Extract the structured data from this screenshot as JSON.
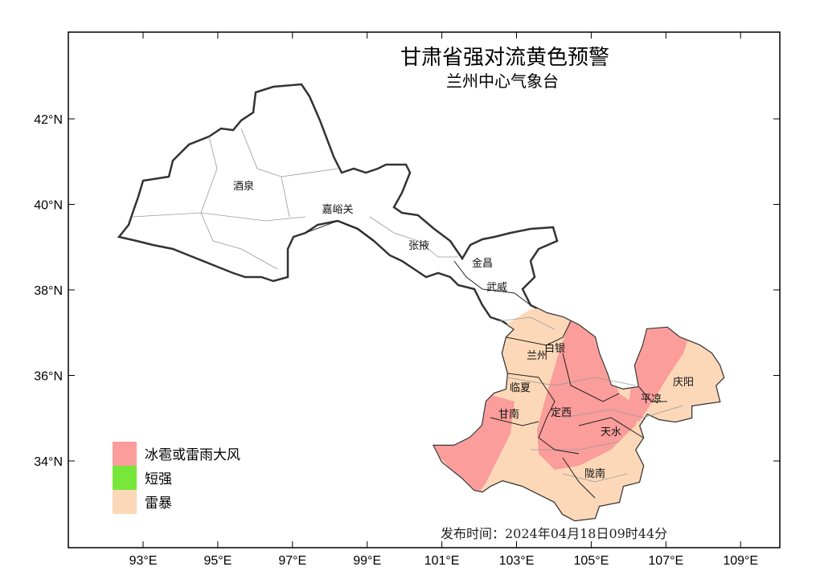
{
  "title": "甘肃省强对流黄色预警",
  "subtitle": "兰州中心气象台",
  "issue_time": "发布时间：2024年04月18日09时44分",
  "axes": {
    "x_ticks": [
      "93°E",
      "95°E",
      "97°E",
      "99°E",
      "101°E",
      "103°E",
      "105°E",
      "107°E",
      "109°E"
    ],
    "y_ticks": [
      "42°N",
      "40°N",
      "38°N",
      "36°N",
      "34°N"
    ]
  },
  "legend": [
    {
      "label": "冰雹或雷雨大风",
      "color": "#FA9D9B"
    },
    {
      "label": "短强",
      "color": "#77E83A"
    },
    {
      "label": "雷暴",
      "color": "#FDD8B8"
    }
  ],
  "cities": [
    "酒泉",
    "嘉峪关",
    "张掖",
    "金昌",
    "武威",
    "兰州",
    "白银",
    "临夏",
    "甘南",
    "定西",
    "天水",
    "平凉",
    "庆阳",
    "陇南"
  ],
  "colors": {
    "outline": "#333333",
    "county_border": "#999999"
  }
}
